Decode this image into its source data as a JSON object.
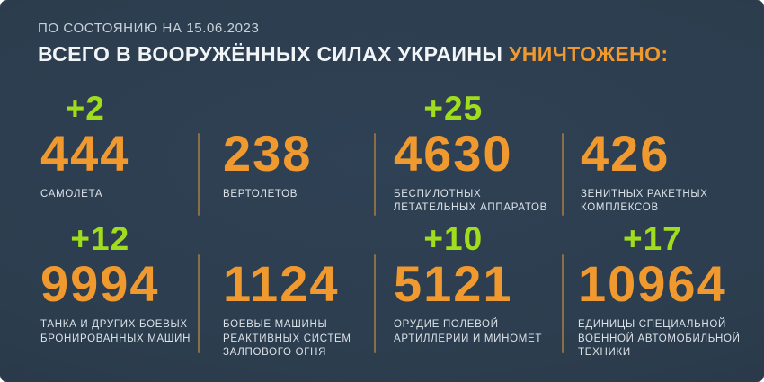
{
  "header": {
    "as_of": "ПО СОСТОЯНИЮ НА 15.06.2023",
    "title_main": "ВСЕГО В ВООРУЖЁННЫХ СИЛАХ УКРАИНЫ",
    "title_accent": "УНИЧТОЖЕНО:"
  },
  "colors": {
    "background": "#2c3d4e",
    "accent_orange": "#f0992f",
    "accent_green": "#a0dd1c",
    "divider_tan": "#8a6e49",
    "label_text": "#dce2e8"
  },
  "stats": [
    {
      "delta": "+2",
      "value": "444",
      "label": "САМОЛЕТА"
    },
    {
      "delta": "",
      "value": "238",
      "label": "ВЕРТОЛЕТОВ"
    },
    {
      "delta": "+25",
      "value": "4630",
      "label": "БЕСПИЛОТНЫХ\nЛЕТАТЕЛЬНЫХ АППАРАТОВ"
    },
    {
      "delta": "",
      "value": "426",
      "label": "ЗЕНИТНЫХ РАКЕТНЫХ\nКОМПЛЕКСОВ"
    },
    {
      "delta": "+12",
      "value": "9994",
      "label": "ТАНКА И ДРУГИХ БОЕВЫХ\nБРОНИРОВАННЫХ МАШИН"
    },
    {
      "delta": "",
      "value": "1124",
      "label": "БОЕВЫЕ МАШИНЫ\nРЕАКТИВНЫХ СИСТЕМ\nЗАЛПОВОГО ОГНЯ"
    },
    {
      "delta": "+10",
      "value": "5121",
      "label": "ОРУДИЕ ПОЛЕВОЙ\nАРТИЛЛЕРИИ И МИНОМЕТ"
    },
    {
      "delta": "+17",
      "value": "10964",
      "label": "ЕДИНИЦЫ СПЕЦИАЛЬНОЙ\nВОЕННОЙ АВТОМОБИЛЬНОЙ\nТЕХНИКИ"
    }
  ],
  "chart_data": {
    "type": "table",
    "title": "ВСЕГО В ВООРУЖЁННЫХ СИЛАХ УКРАИНЫ УНИЧТОЖЕНО:",
    "subtitle": "ПО СОСТОЯНИЮ НА 15.06.2023",
    "categories": [
      "самолета",
      "вертолетов",
      "беспилотных летательных аппаратов",
      "зенитных ракетных комплексов",
      "танка и других боевых бронированных машин",
      "боевые машины реактивных систем залпового огня",
      "орудие полевой артиллерии и миномет",
      "единицы специальной военной автомобильной техники"
    ],
    "values": [
      444,
      238,
      4630,
      426,
      9994,
      1124,
      5121,
      10964
    ],
    "deltas": [
      2,
      null,
      25,
      null,
      12,
      null,
      10,
      17
    ],
    "layout": "2 rows x 4 columns, deltas shown in green above values, tan vertical dividers between columns"
  }
}
